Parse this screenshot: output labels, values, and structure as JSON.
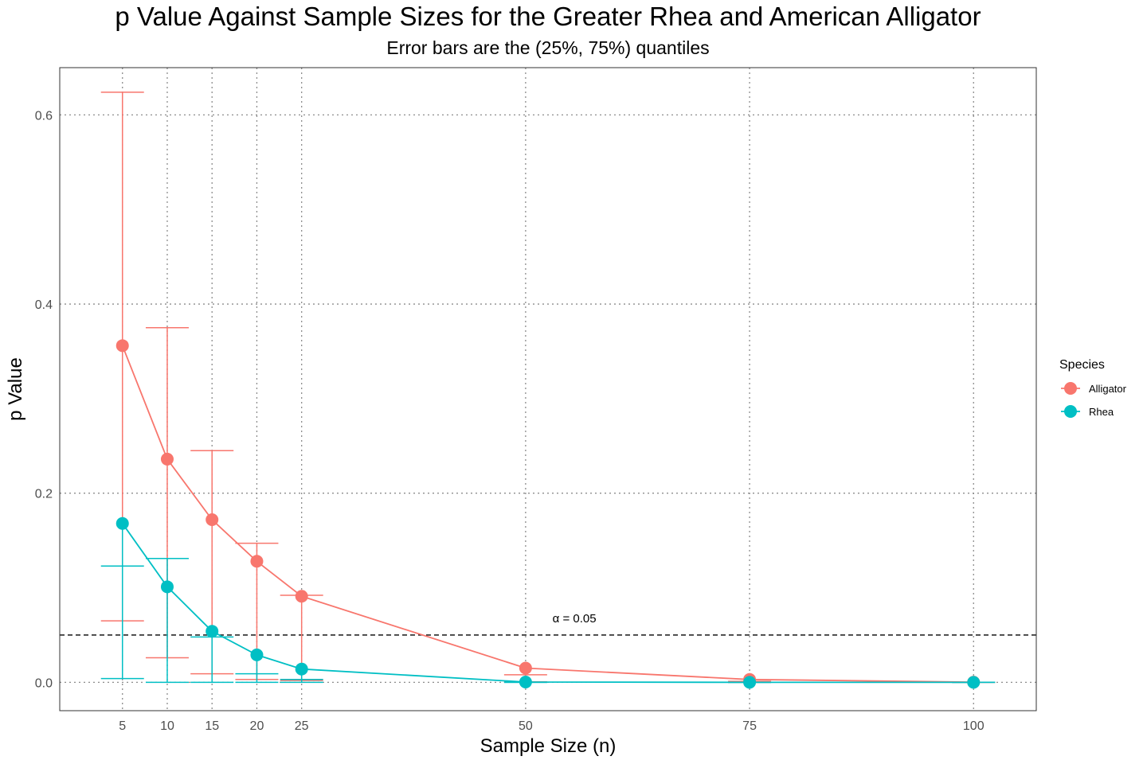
{
  "colors": {
    "Alligator": "#F8766D",
    "Rhea": "#00BFC4",
    "grid": "#8c8c8c",
    "panel_border": "#333333"
  },
  "chart_data": {
    "type": "line",
    "title": "p Value Against Sample Sizes for the Greater Rhea and American Alligator",
    "subtitle": "Error bars are the (25%, 75%) quantiles",
    "xlabel": "Sample Size (n)",
    "ylabel": "p Value",
    "xlim": [
      -2,
      107
    ],
    "ylim": [
      -0.03,
      0.65
    ],
    "x_ticks": [
      5,
      10,
      15,
      20,
      25,
      50,
      75,
      100
    ],
    "y_ticks": [
      0.0,
      0.2,
      0.4,
      0.6
    ],
    "y_tick_labels": [
      "0.0",
      "0.2",
      "0.4",
      "0.6"
    ],
    "grid": "dotted, major breaks only",
    "hline": {
      "y": 0.05,
      "style": "dashed",
      "label": "α = 0.05",
      "label_x": 53
    },
    "legend": {
      "title": "Species",
      "position": "right"
    },
    "series": [
      {
        "name": "Alligator",
        "x": [
          5,
          10,
          15,
          20,
          25,
          50,
          75,
          100
        ],
        "y": [
          0.356,
          0.236,
          0.172,
          0.128,
          0.091,
          0.015,
          0.003,
          0.0002
        ],
        "q25": [
          0.065,
          0.026,
          0.009,
          0.003,
          0.002,
          0.0005,
          0.0,
          0.0
        ],
        "q75": [
          0.624,
          0.375,
          0.245,
          0.147,
          0.092,
          0.008,
          0.001,
          0.0
        ]
      },
      {
        "name": "Rhea",
        "x": [
          5,
          10,
          15,
          20,
          25,
          50,
          75,
          100
        ],
        "y": [
          0.168,
          0.101,
          0.054,
          0.029,
          0.014,
          0.0003,
          0.0,
          0.0
        ],
        "q25": [
          0.004,
          0.0,
          0.0,
          0.0,
          0.0,
          0.0,
          0.0,
          0.0
        ],
        "q75": [
          0.123,
          0.131,
          0.048,
          0.009,
          0.003,
          0.0,
          0.0,
          0.0
        ]
      }
    ]
  }
}
